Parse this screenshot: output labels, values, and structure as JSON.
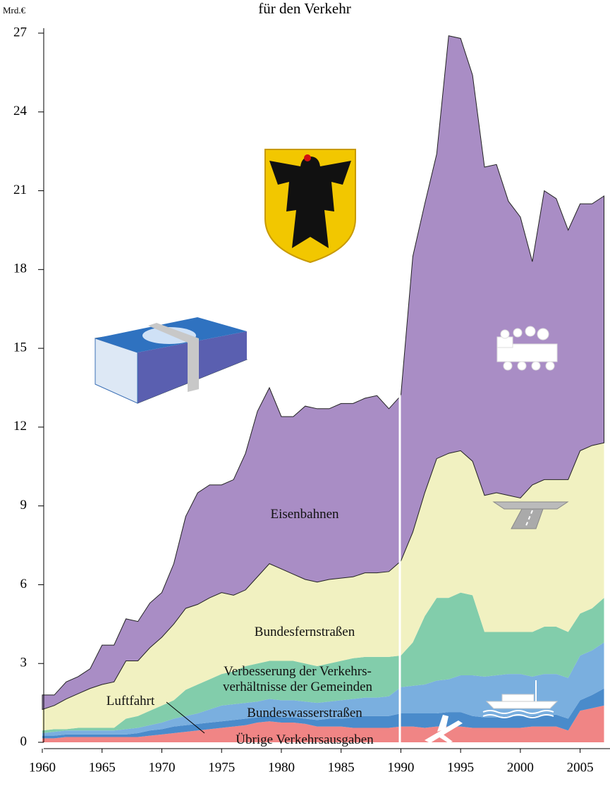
{
  "chart_data": {
    "type": "stacked-area",
    "title": "für den Verkehr",
    "y_label": "Mrd.€",
    "x": [
      1960,
      1961,
      1962,
      1963,
      1964,
      1965,
      1966,
      1967,
      1968,
      1969,
      1970,
      1971,
      1972,
      1973,
      1974,
      1975,
      1976,
      1977,
      1978,
      1979,
      1980,
      1981,
      1982,
      1983,
      1984,
      1985,
      1986,
      1987,
      1988,
      1989,
      1990,
      1991,
      1992,
      1993,
      1994,
      1995,
      1996,
      1997,
      1998,
      1999,
      2000,
      2001,
      2002,
      2003,
      2004,
      2005,
      2006,
      2007
    ],
    "xlim": [
      1960,
      2007.5
    ],
    "xticks": [
      1960,
      1965,
      1970,
      1975,
      1980,
      1985,
      1990,
      1995,
      2000,
      2005
    ],
    "ylim": [
      0,
      27
    ],
    "yticks": [
      0,
      3,
      6,
      9,
      12,
      15,
      18,
      21,
      24,
      27
    ],
    "series": [
      {
        "name": "Übrige Verkehrsausgaben",
        "color": "#f08585",
        "values": [
          0.15,
          0.15,
          0.2,
          0.2,
          0.2,
          0.2,
          0.2,
          0.2,
          0.2,
          0.25,
          0.3,
          0.35,
          0.4,
          0.45,
          0.5,
          0.55,
          0.6,
          0.65,
          0.75,
          0.8,
          0.75,
          0.75,
          0.7,
          0.6,
          0.6,
          0.6,
          0.55,
          0.55,
          0.55,
          0.55,
          0.6,
          0.6,
          0.55,
          0.6,
          0.6,
          0.6,
          0.55,
          0.55,
          0.55,
          0.55,
          0.55,
          0.6,
          0.6,
          0.6,
          0.45,
          1.2,
          1.3,
          1.4
        ]
      },
      {
        "name": "Luftfahrt",
        "color": "#4a8bcb",
        "values": [
          0.1,
          0.1,
          0.1,
          0.1,
          0.1,
          0.1,
          0.1,
          0.1,
          0.15,
          0.2,
          0.2,
          0.25,
          0.25,
          0.25,
          0.25,
          0.25,
          0.25,
          0.25,
          0.2,
          0.2,
          0.2,
          0.2,
          0.2,
          0.25,
          0.3,
          0.3,
          0.4,
          0.45,
          0.45,
          0.45,
          0.5,
          0.5,
          0.55,
          0.5,
          0.55,
          0.55,
          0.45,
          0.4,
          0.4,
          0.45,
          0.45,
          0.4,
          0.45,
          0.45,
          0.45,
          0.4,
          0.5,
          0.65
        ]
      },
      {
        "name": "Bundeswasserstraßen",
        "color": "#7aafdf",
        "values": [
          0.1,
          0.15,
          0.15,
          0.15,
          0.15,
          0.15,
          0.15,
          0.2,
          0.2,
          0.2,
          0.25,
          0.3,
          0.35,
          0.4,
          0.5,
          0.6,
          0.6,
          0.6,
          0.6,
          0.65,
          0.65,
          0.65,
          0.65,
          0.65,
          0.65,
          0.7,
          0.7,
          0.7,
          0.7,
          0.75,
          1.0,
          1.05,
          1.1,
          1.25,
          1.25,
          1.4,
          1.55,
          1.55,
          1.6,
          1.6,
          1.6,
          1.5,
          1.55,
          1.55,
          1.55,
          1.7,
          1.7,
          1.75
        ]
      },
      {
        "name": "Verbesserung der Verkehrs-\nverhältnisse der Gemeinden",
        "color": "#82cdab",
        "values": [
          0.1,
          0.1,
          0.05,
          0.1,
          0.1,
          0.1,
          0.1,
          0.4,
          0.45,
          0.55,
          0.65,
          0.7,
          1.0,
          1.1,
          1.15,
          1.2,
          1.25,
          1.4,
          1.45,
          1.45,
          1.5,
          1.5,
          1.45,
          1.4,
          1.45,
          1.5,
          1.55,
          1.55,
          1.55,
          1.5,
          1.2,
          1.65,
          2.6,
          3.15,
          3.1,
          3.15,
          3.05,
          1.7,
          1.65,
          1.6,
          1.6,
          1.7,
          1.8,
          1.8,
          1.75,
          1.6,
          1.6,
          1.7
        ]
      },
      {
        "name": "Bundesfernstraßen",
        "color": "#f1f1c1",
        "values": [
          0.8,
          0.9,
          1.15,
          1.3,
          1.5,
          1.65,
          1.75,
          2.2,
          2.1,
          2.4,
          2.6,
          2.9,
          3.1,
          3.05,
          3.1,
          3.1,
          2.9,
          2.9,
          3.3,
          3.7,
          3.5,
          3.3,
          3.2,
          3.2,
          3.2,
          3.15,
          3.1,
          3.2,
          3.2,
          3.25,
          3.6,
          4.2,
          4.7,
          5.3,
          5.5,
          5.4,
          5.1,
          5.2,
          5.3,
          5.2,
          5.1,
          5.6,
          5.6,
          5.6,
          5.8,
          6.2,
          6.2,
          5.9
        ]
      },
      {
        "name": "Eisenbahnen",
        "color": "#a98dc5",
        "values": [
          0.55,
          0.4,
          0.65,
          0.65,
          0.75,
          1.5,
          1.4,
          1.6,
          1.5,
          1.7,
          1.7,
          2.3,
          3.5,
          4.25,
          4.3,
          4.1,
          4.4,
          5.2,
          6.3,
          6.7,
          5.8,
          6.0,
          6.6,
          6.6,
          6.5,
          6.65,
          6.6,
          6.65,
          6.75,
          6.2,
          6.3,
          10.5,
          11.0,
          11.6,
          15.9,
          15.7,
          14.7,
          12.5,
          12.5,
          11.2,
          10.7,
          8.5,
          11.0,
          10.7,
          9.5,
          9.4,
          9.2,
          9.4
        ]
      }
    ]
  }
}
